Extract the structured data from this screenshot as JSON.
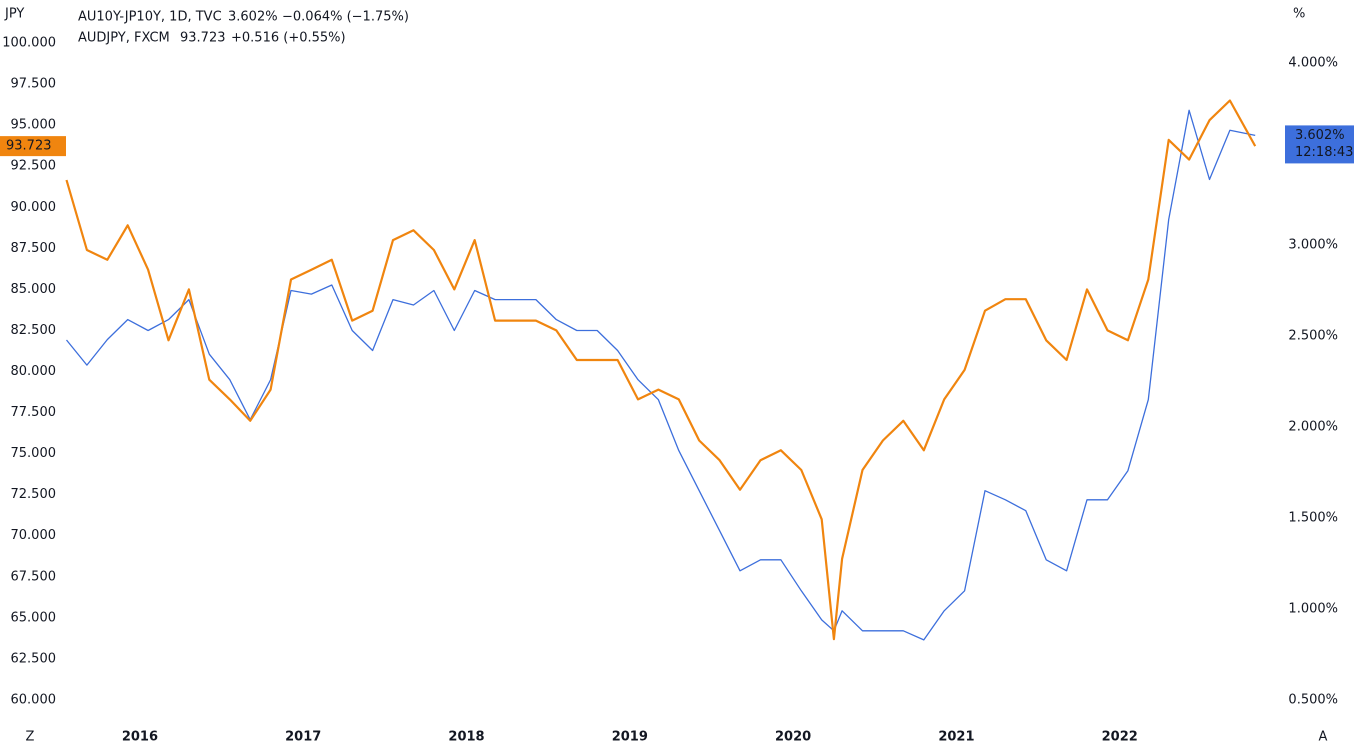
{
  "chart_data": {
    "type": "line",
    "y_unit": "JPY",
    "y2_unit": "%",
    "x": [
      2015.55,
      2015.675,
      2015.8,
      2015.925,
      2016.05,
      2016.175,
      2016.3,
      2016.425,
      2016.55,
      2016.675,
      2016.8,
      2016.925,
      2017.05,
      2017.175,
      2017.3,
      2017.425,
      2017.55,
      2017.675,
      2017.8,
      2017.925,
      2018.05,
      2018.175,
      2018.3,
      2018.425,
      2018.55,
      2018.675,
      2018.8,
      2018.925,
      2019.05,
      2019.175,
      2019.3,
      2019.425,
      2019.55,
      2019.675,
      2019.8,
      2019.925,
      2020.05,
      2020.175,
      2020.25,
      2020.3,
      2020.425,
      2020.55,
      2020.675,
      2020.8,
      2020.925,
      2021.05,
      2021.175,
      2021.3,
      2021.425,
      2021.55,
      2021.675,
      2021.8,
      2021.925,
      2022.05,
      2022.175,
      2022.3,
      2022.425,
      2022.55,
      2022.675,
      2022.83
    ],
    "series": [
      {
        "name": "AU10Y-JP10Y, 1D, TVC",
        "last_label": "3.602%",
        "change_label": "−0.064% (−1.75%)",
        "countdown": "12:18:43",
        "color": "#3d6fdc",
        "axis": "y2",
        "values": [
          2.478,
          2.34,
          2.48,
          2.59,
          2.53,
          2.59,
          2.7,
          2.4,
          2.26,
          2.04,
          2.26,
          2.75,
          2.73,
          2.78,
          2.53,
          2.42,
          2.7,
          2.67,
          2.75,
          2.53,
          2.75,
          2.7,
          2.7,
          2.7,
          2.59,
          2.53,
          2.53,
          2.42,
          2.26,
          2.15,
          1.87,
          1.65,
          1.43,
          1.21,
          1.27,
          1.27,
          1.1,
          0.94,
          0.88,
          0.99,
          0.88,
          0.88,
          0.88,
          0.83,
          0.99,
          1.1,
          1.65,
          1.6,
          1.54,
          1.27,
          1.21,
          1.6,
          1.6,
          1.76,
          2.15,
          3.14,
          3.74,
          3.36,
          3.63,
          3.602
        ]
      },
      {
        "name": "AUDJPY, FXCM",
        "last_label": "93.723",
        "change_label": "+0.516 (+0.55%)",
        "color": "#f0850f",
        "axis": "y",
        "values": [
          91.66,
          87.4,
          86.8,
          88.9,
          86.2,
          81.9,
          85.0,
          79.5,
          78.3,
          77.0,
          78.9,
          85.6,
          86.2,
          86.8,
          83.1,
          83.7,
          88.0,
          88.6,
          87.4,
          85.0,
          88.0,
          83.1,
          83.1,
          83.1,
          82.5,
          80.7,
          80.7,
          80.7,
          78.3,
          78.9,
          78.3,
          75.8,
          74.6,
          72.8,
          74.6,
          75.2,
          74.0,
          71.0,
          63.7,
          68.6,
          74.0,
          75.8,
          77.0,
          75.2,
          78.3,
          80.1,
          83.7,
          84.4,
          84.4,
          81.9,
          80.7,
          85.0,
          82.5,
          81.9,
          85.6,
          94.1,
          92.9,
          95.3,
          96.5,
          93.723
        ]
      }
    ],
    "xlim": [
      2015.143,
      2023.0
    ],
    "xticks": [
      2016,
      2017,
      2018,
      2019,
      2020,
      2021,
      2022
    ],
    "ylim": [
      58.78,
      102.62
    ],
    "yticks": [
      {
        "value": 60,
        "label": "60.000"
      },
      {
        "value": 62.5,
        "label": "62.500"
      },
      {
        "value": 65,
        "label": "65.000"
      },
      {
        "value": 67.5,
        "label": "67.500"
      },
      {
        "value": 70,
        "label": "70.000"
      },
      {
        "value": 72.5,
        "label": "72.500"
      },
      {
        "value": 75,
        "label": "75.000"
      },
      {
        "value": 77.5,
        "label": "77.500"
      },
      {
        "value": 80,
        "label": "80.000"
      },
      {
        "value": 82.5,
        "label": "82.500"
      },
      {
        "value": 85,
        "label": "85.000"
      },
      {
        "value": 87.5,
        "label": "87.500"
      },
      {
        "value": 90,
        "label": "90.000"
      },
      {
        "value": 92.5,
        "label": "92.500"
      },
      {
        "value": 95,
        "label": "95.000"
      },
      {
        "value": 97.5,
        "label": "97.500"
      },
      {
        "value": 100,
        "label": "100.000"
      }
    ],
    "y2lim": [
      0.39,
      4.346
    ],
    "y2ticks": [
      {
        "value": 0.5,
        "label": "0.500%"
      },
      {
        "value": 1,
        "label": "1.000%"
      },
      {
        "value": 1.5,
        "label": "1.500%"
      },
      {
        "value": 2,
        "label": "2.000%"
      },
      {
        "value": 2.5,
        "label": "2.500%"
      },
      {
        "value": 3,
        "label": "3.000%"
      },
      {
        "value": 3.5,
        "label": "3.500%"
      },
      {
        "value": 4,
        "label": "4.000%"
      }
    ],
    "grid": false
  },
  "controls": [
    "Z",
    "A"
  ]
}
